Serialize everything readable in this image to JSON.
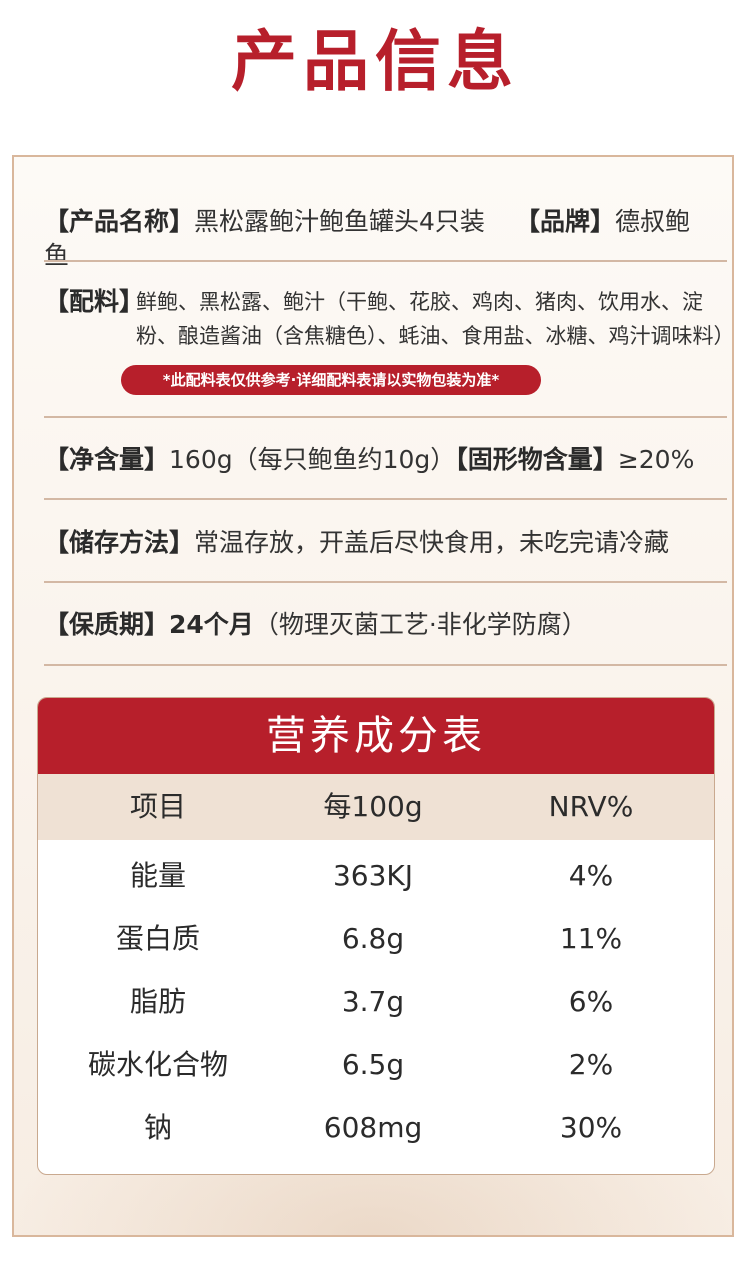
{
  "page": {
    "title": "产品信息"
  },
  "info": {
    "name_label": "【产品名称】",
    "name_value": "黑松露鲍汁鲍鱼罐头4只装",
    "brand_label": "【品牌】",
    "brand_value": "德叔鲍鱼",
    "ingredients_label": "【配料】",
    "ingredients_value": "鲜鲍、黑松露、鲍汁（干鲍、花胶、鸡肉、猪肉、饮用水、淀粉、酿造酱油（含焦糖色）、蚝油、食用盐、冰糖、鸡汁调味料）",
    "notice": "*此配料表仅供参考·详细配料表请以实物包装为准*",
    "net_label": "【净含量】",
    "net_value": "160g（每只鲍鱼约10g）",
    "solid_label": "【固形物含量】",
    "solid_value": "≥20%",
    "storage_label": "【储存方法】",
    "storage_value": "常温存放，开盖后尽快食用，未吃完请冷藏",
    "shelf_label": "【保质期】",
    "shelf_bold": "24个月",
    "shelf_value": "（物理灭菌工艺·非化学防腐）"
  },
  "nutrition": {
    "title": "营养成分表",
    "headers": [
      "项目",
      "每100g",
      "NRV%"
    ],
    "rows": [
      [
        "能量",
        "363KJ",
        "4%"
      ],
      [
        "蛋白质",
        "6.8g",
        "11%"
      ],
      [
        "脂肪",
        "3.7g",
        "6%"
      ],
      [
        "碳水化合物",
        "6.5g",
        "2%"
      ],
      [
        "钠",
        "608mg",
        "30%"
      ]
    ]
  },
  "colors": {
    "accent": "#b71f2b",
    "rule": "#d3b8a4",
    "header_bg": "#efe1d4"
  }
}
